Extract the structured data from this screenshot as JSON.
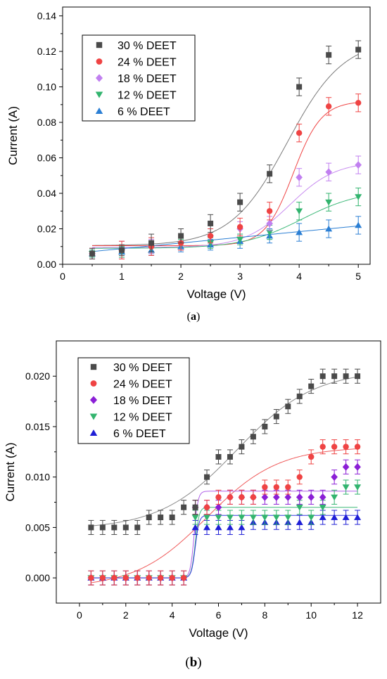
{
  "panels": [
    {
      "label_open": "(",
      "label": "a",
      "label_close": ")"
    },
    {
      "label_open": "(",
      "label": "b",
      "label_close": ")"
    }
  ],
  "chart_data": [
    {
      "type": "scatter",
      "xlabel": "Voltage (V)",
      "ylabel": "Current (A)",
      "xlim": [
        0,
        5.2
      ],
      "ylim": [
        0,
        0.145
      ],
      "xticks": [
        "0",
        "1",
        "2",
        "3",
        "4",
        "5"
      ],
      "yticks": [
        "0.00",
        "0.02",
        "0.04",
        "0.06",
        "0.08",
        "0.10",
        "0.12",
        "0.14"
      ],
      "legend_position": "top-left",
      "x": [
        0.5,
        1,
        1.5,
        2,
        2.5,
        3,
        3.5,
        4,
        4.5,
        5
      ],
      "series": [
        {
          "name": "30 % DEET",
          "marker": "square",
          "color": "#4a4a4a",
          "line_color": "#7a7a7a",
          "values": [
            0.006,
            0.008,
            0.012,
            0.016,
            0.023,
            0.035,
            0.051,
            0.1,
            0.118,
            0.121
          ],
          "errors": [
            0.003,
            0.003,
            0.005,
            0.004,
            0.005,
            0.005,
            0.005,
            0.005,
            0.005,
            0.005
          ],
          "fit": {
            "base": 0.0105,
            "top": 0.127,
            "x0": 3.8,
            "k": 2.1
          }
        },
        {
          "name": "24 % DEET",
          "marker": "circle",
          "color": "#ef4343",
          "line_color": "#ef4343",
          "values": [
            0.006,
            0.008,
            0.01,
            0.012,
            0.016,
            0.021,
            0.03,
            0.074,
            0.089,
            0.091
          ],
          "errors": [
            0.003,
            0.005,
            0.005,
            0.004,
            0.004,
            0.005,
            0.005,
            0.005,
            0.005,
            0.005
          ],
          "fit": {
            "base": 0.0105,
            "top": 0.092,
            "x0": 3.9,
            "k": 4.2
          }
        },
        {
          "name": "18 % DEET",
          "marker": "diamond",
          "color": "#c180f0",
          "line_color": "#c88cf0",
          "values": [
            0.006,
            0.008,
            0.01,
            0.012,
            0.016,
            0.02,
            0.023,
            0.049,
            0.052,
            0.056
          ],
          "errors": [
            0.003,
            0.005,
            0.004,
            0.004,
            0.004,
            0.004,
            0.004,
            0.005,
            0.005,
            0.005
          ],
          "fit": {
            "base": 0.0095,
            "top": 0.058,
            "x0": 3.85,
            "k": 2.6
          }
        },
        {
          "name": "12 % DEET",
          "marker": "triangle-down",
          "color": "#32b46e",
          "line_color": "#3cb878",
          "values": [
            0.006,
            0.007,
            0.009,
            0.011,
            0.012,
            0.014,
            0.018,
            0.03,
            0.035,
            0.038
          ],
          "errors": [
            0.002,
            0.003,
            0.003,
            0.003,
            0.003,
            0.003,
            0.004,
            0.005,
            0.005,
            0.005
          ],
          "fit": {
            "base": 0.009,
            "top": 0.042,
            "x0": 4.05,
            "k": 2.0
          }
        },
        {
          "name": "6 % DEET",
          "marker": "triangle-up",
          "color": "#2b7fd4",
          "line_color": "#2b7fd4",
          "values": [
            0.006,
            0.007,
            0.008,
            0.01,
            0.011,
            0.013,
            0.016,
            0.018,
            0.02,
            0.022
          ],
          "errors": [
            0.002,
            0.003,
            0.003,
            0.003,
            0.003,
            0.004,
            0.004,
            0.005,
            0.005,
            0.005
          ],
          "fit": {
            "linear": [
              0.0056,
              0.0032
            ]
          }
        }
      ]
    },
    {
      "type": "scatter",
      "xlabel": "Voltage (V)",
      "ylabel": "Current (A)",
      "xlim": [
        -1,
        13
      ],
      "ylim": [
        -0.0025,
        0.0235
      ],
      "xticks": [
        "0",
        "2",
        "4",
        "6",
        "8",
        "10",
        "12"
      ],
      "yticks": [
        "0.000",
        "0.005",
        "0.010",
        "0.015",
        "0.020"
      ],
      "ytick_values": [
        0,
        0.005,
        0.01,
        0.015,
        0.02
      ],
      "ytick_positions": [
        0,
        0.005,
        0.01,
        0.015,
        0.02
      ],
      "legend_position": "top-left",
      "x": [
        0.5,
        1,
        1.5,
        2,
        2.5,
        3,
        3.5,
        4,
        4.5,
        5,
        5.5,
        6,
        6.5,
        7,
        7.5,
        8,
        8.5,
        9,
        9.5,
        10,
        10.5,
        11,
        11.5,
        12
      ],
      "series": [
        {
          "name": "30 % DEET",
          "marker": "square",
          "color": "#4a4a4a",
          "line_color": "#8a8a8a",
          "values": [
            0.005,
            0.005,
            0.005,
            0.005,
            0.005,
            0.006,
            0.006,
            0.006,
            0.007,
            0.007,
            0.01,
            0.012,
            0.012,
            0.013,
            0.014,
            0.015,
            0.016,
            0.017,
            0.018,
            0.019,
            0.02,
            0.02,
            0.02,
            0.02
          ],
          "errors": [
            0.0007,
            0.0007,
            0.0007,
            0.0007,
            0.0007,
            0.0007,
            0.0007,
            0.0007,
            0.0007,
            0.0007,
            0.0007,
            0.0007,
            0.0007,
            0.0007,
            0.0007,
            0.0007,
            0.0007,
            0.0007,
            0.0007,
            0.0007,
            0.0007,
            0.0007,
            0.0007,
            0.0007
          ],
          "fit": {
            "base": 0.0048,
            "top": 0.0206,
            "x0": 6.8,
            "k": 0.6
          }
        },
        {
          "name": "24 % DEET",
          "marker": "circle",
          "color": "#ef4343",
          "line_color": "#ef5a5a",
          "values": [
            0.0,
            0.0,
            0.0,
            0.0,
            0.0,
            0.0,
            0.0,
            0.0,
            0.0,
            0.007,
            0.007,
            0.008,
            0.008,
            0.008,
            0.008,
            0.009,
            0.009,
            0.009,
            0.01,
            0.012,
            0.013,
            0.013,
            0.013,
            0.013
          ],
          "errors": [
            0.0007,
            0.0007,
            0.0007,
            0.0007,
            0.0007,
            0.0007,
            0.0007,
            0.0007,
            0.0007,
            0.0007,
            0.0007,
            0.0007,
            0.0007,
            0.0007,
            0.0007,
            0.0007,
            0.0007,
            0.0007,
            0.0007,
            0.0007,
            0.0007,
            0.0007,
            0.0007,
            0.0007
          ],
          "fit": {
            "base": -0.001,
            "top": 0.013,
            "x0": 5.5,
            "k": 0.65
          }
        },
        {
          "name": "18 % DEET",
          "marker": "diamond",
          "color": "#8b1fd6",
          "line_color": "#b060e8",
          "values": [
            0.0,
            0.0,
            0.0,
            0.0,
            0.0,
            0.0,
            0.0,
            0.0,
            0.0,
            0.007,
            0.007,
            0.007,
            0.008,
            0.008,
            0.008,
            0.008,
            0.008,
            0.008,
            0.008,
            0.008,
            0.008,
            0.01,
            0.011,
            0.011
          ],
          "errors": [
            0.0007,
            0.0007,
            0.0007,
            0.0007,
            0.0007,
            0.0007,
            0.0007,
            0.0007,
            0.0007,
            0.0007,
            0.0007,
            0.0007,
            0.0007,
            0.0007,
            0.0007,
            0.0007,
            0.0007,
            0.0007,
            0.0007,
            0.0007,
            0.0007,
            0.0007,
            0.0007,
            0.0007
          ],
          "fit": {
            "base": 0.0,
            "top": 0.0086,
            "x0": 4.95,
            "k": 12
          }
        },
        {
          "name": "12 % DEET",
          "marker": "triangle-down",
          "color": "#32b46e",
          "line_color": "#3cb878",
          "values": [
            0.0,
            0.0,
            0.0,
            0.0,
            0.0,
            0.0,
            0.0,
            0.0,
            0.0,
            0.006,
            0.006,
            0.006,
            0.006,
            0.006,
            0.006,
            0.006,
            0.006,
            0.006,
            0.007,
            0.006,
            0.007,
            0.008,
            0.009,
            0.009
          ],
          "errors": [
            0.0007,
            0.0007,
            0.0007,
            0.0007,
            0.0007,
            0.0007,
            0.0007,
            0.0007,
            0.0007,
            0.0007,
            0.0007,
            0.0007,
            0.0007,
            0.0007,
            0.0007,
            0.0007,
            0.0007,
            0.0007,
            0.0007,
            0.0007,
            0.0007,
            0.0007,
            0.0007,
            0.0007
          ],
          "fit": {
            "base": 0.0,
            "top": 0.007,
            "x0": 5.0,
            "k": 12
          }
        },
        {
          "name": "6 % DEET",
          "marker": "triangle-up",
          "color": "#1f1fd6",
          "line_color": "#3a3ae0",
          "values": [
            0.0,
            0.0,
            0.0,
            0.0,
            0.0,
            0.0,
            0.0,
            0.0,
            0.0,
            0.005,
            0.005,
            0.005,
            0.005,
            0.005,
            0.0055,
            0.0055,
            0.0055,
            0.0055,
            0.0055,
            0.0055,
            0.006,
            0.006,
            0.006,
            0.006
          ],
          "errors": [
            0.0007,
            0.0007,
            0.0007,
            0.0007,
            0.0007,
            0.0007,
            0.0007,
            0.0007,
            0.0007,
            0.0007,
            0.0007,
            0.0007,
            0.0007,
            0.0007,
            0.0007,
            0.0007,
            0.0007,
            0.0007,
            0.0007,
            0.0007,
            0.0007,
            0.0007,
            0.0007,
            0.0007
          ],
          "fit": {
            "base": 0.0,
            "top": 0.0062,
            "x0": 5.0,
            "k": 12
          }
        }
      ]
    }
  ]
}
